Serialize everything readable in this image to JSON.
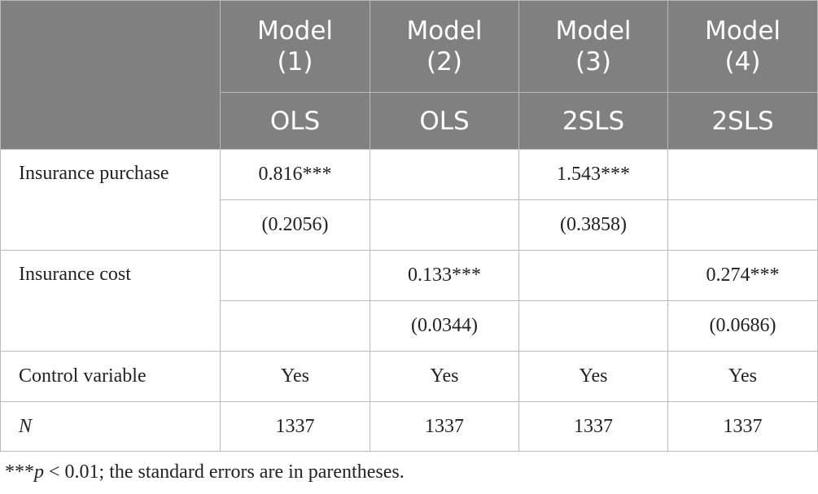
{
  "table": {
    "models": [
      {
        "line1": "Model",
        "line2": "(1)",
        "method": "OLS"
      },
      {
        "line1": "Model",
        "line2": "(2)",
        "method": "OLS"
      },
      {
        "line1": "Model",
        "line2": "(3)",
        "method": "2SLS"
      },
      {
        "line1": "Model",
        "line2": "(4)",
        "method": "2SLS"
      }
    ],
    "rows": {
      "insurance_purchase": {
        "label": "Insurance purchase",
        "coef": [
          "0.816***",
          "",
          "1.543***",
          ""
        ],
        "se": [
          "(0.2056)",
          "",
          "(0.3858)",
          ""
        ]
      },
      "insurance_cost": {
        "label": "Insurance cost",
        "coef": [
          "",
          "0.133***",
          "",
          "0.274***"
        ],
        "se": [
          "",
          "(0.0344)",
          "",
          "(0.0686)"
        ]
      },
      "control_variable": {
        "label": "Control variable",
        "values": [
          "Yes",
          "Yes",
          "Yes",
          "Yes"
        ]
      },
      "n": {
        "label": "N",
        "values": [
          "1337",
          "1337",
          "1337",
          "1337"
        ]
      }
    }
  },
  "footnote": {
    "stars": "***",
    "p": "p",
    "rest": " < 0.01; the standard errors are in parentheses."
  }
}
